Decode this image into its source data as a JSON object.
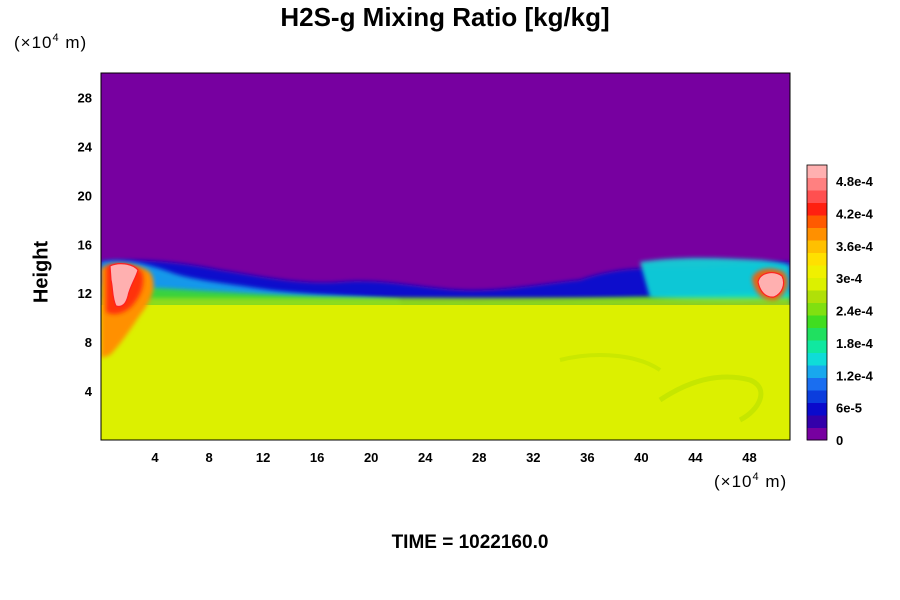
{
  "chart_data": {
    "type": "heatmap",
    "title": "H2S-g Mixing Ratio [kg/kg]",
    "ylabel": "Height",
    "x_unit": "(×10",
    "x_unit_exp": "4",
    "x_unit_tail": " m)",
    "y_unit": "(×10",
    "y_unit_exp": "4",
    "y_unit_tail": " m)",
    "xlim": [
      0,
      51
    ],
    "ylim": [
      0,
      30
    ],
    "x_ticks": [
      "4",
      "8",
      "12",
      "16",
      "20",
      "24",
      "28",
      "32",
      "36",
      "40",
      "44",
      "48"
    ],
    "y_ticks": [
      "4",
      "8",
      "12",
      "16",
      "20",
      "24",
      "28"
    ],
    "colorbar": {
      "min": 0,
      "max": 0.00051,
      "labels": [
        "0",
        "6e-5",
        "1.2e-4",
        "1.8e-4",
        "2.4e-4",
        "3e-4",
        "3.6e-4",
        "4.2e-4",
        "4.8e-4"
      ],
      "label_values": [
        0,
        6e-05,
        0.00012,
        0.00018,
        0.00024,
        0.0003,
        0.00036,
        0.00042,
        0.00048
      ],
      "colors": [
        "#7700a0",
        "#3300aa",
        "#0a0acc",
        "#0b3ddd",
        "#1a6ef0",
        "#18a8ee",
        "#0fdcd8",
        "#10e8a0",
        "#20e060",
        "#40dd20",
        "#80e010",
        "#b0e008",
        "#dcf000",
        "#f0f000",
        "#ffe000",
        "#ffc000",
        "#ff9000",
        "#ff5a00",
        "#ff2010",
        "#ff5050",
        "#ff8080",
        "#ffb0b0"
      ]
    },
    "fields": {
      "upper_layer_value": 0,
      "lower_layer_value": 0.00034,
      "interface_height_range": [
        11.5,
        15
      ]
    },
    "time_label": "TIME = 1022160.0"
  }
}
